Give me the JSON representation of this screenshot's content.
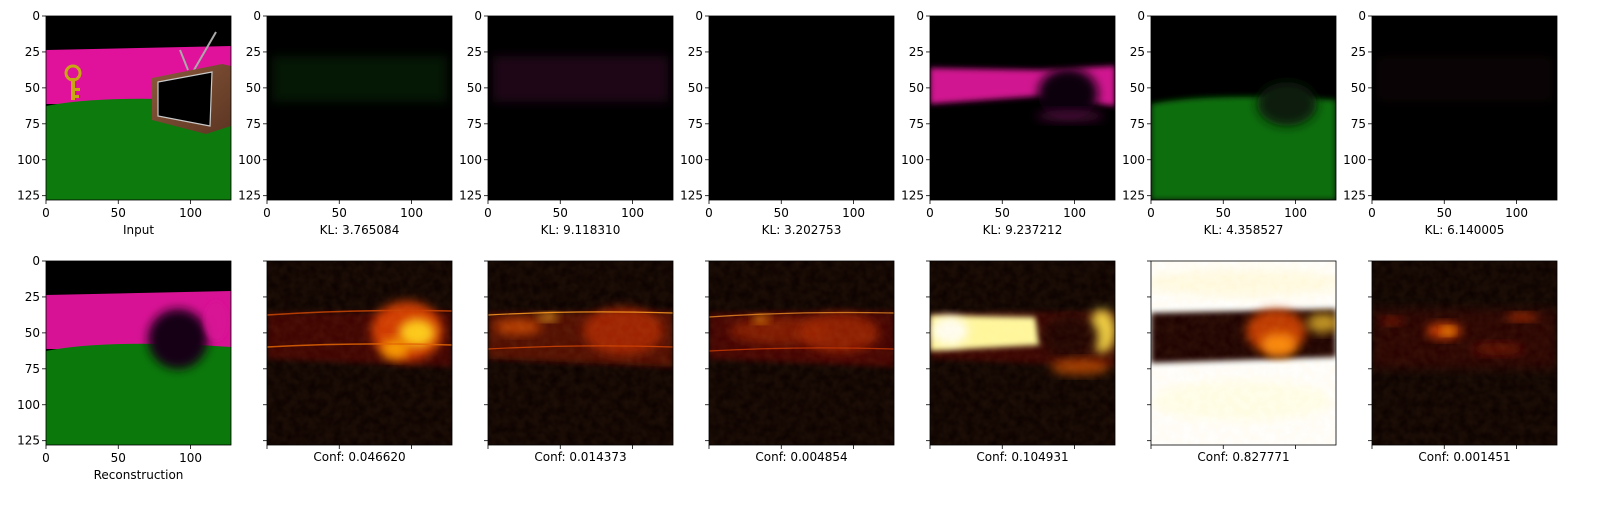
{
  "chart_data": {
    "type": "image-grid",
    "grid": {
      "rows": 2,
      "cols": 7
    },
    "panel_size": [
      128,
      128
    ],
    "xlim": [
      0,
      128
    ],
    "ylim": [
      128,
      0
    ],
    "x_ticks": [
      0,
      50,
      100
    ],
    "y_ticks": [
      0,
      25,
      50,
      75,
      100,
      125
    ],
    "top_row": [
      {
        "caption": "Input",
        "kind": "scene"
      },
      {
        "caption": "KL: 3.765084",
        "kind": "dark",
        "tint": "#0b3a0b",
        "level": 0.08
      },
      {
        "caption": "KL: 9.118310",
        "kind": "dark",
        "tint": "#3d0b2d",
        "level": 0.1
      },
      {
        "caption": "KL: 3.202753",
        "kind": "dark",
        "tint": "#000000",
        "level": 0.0
      },
      {
        "caption": "KL: 9.237212",
        "kind": "magenta-band"
      },
      {
        "caption": "KL: 4.358527",
        "kind": "green-field"
      },
      {
        "caption": "KL: 6.140005",
        "kind": "dark",
        "tint": "#2a0a18",
        "level": 0.05
      }
    ],
    "bottom_row": [
      {
        "caption": "Reconstruction",
        "kind": "reconstruction"
      },
      {
        "caption": "Conf: 0.046620",
        "kind": "heat",
        "variant": "right-hot",
        "conf": 0.04662
      },
      {
        "caption": "Conf: 0.014373",
        "kind": "heat",
        "variant": "band-mid",
        "conf": 0.014373
      },
      {
        "caption": "Conf: 0.004854",
        "kind": "heat",
        "variant": "band-low",
        "conf": 0.004854
      },
      {
        "caption": "Conf: 0.104931",
        "kind": "heat",
        "variant": "left-bright",
        "conf": 0.104931
      },
      {
        "caption": "Conf: 0.827771",
        "kind": "heat",
        "variant": "inverse-white",
        "conf": 0.827771
      },
      {
        "caption": "Conf: 0.001451",
        "kind": "heat",
        "variant": "sparse",
        "conf": 0.001451
      }
    ],
    "colormap": "hot"
  }
}
